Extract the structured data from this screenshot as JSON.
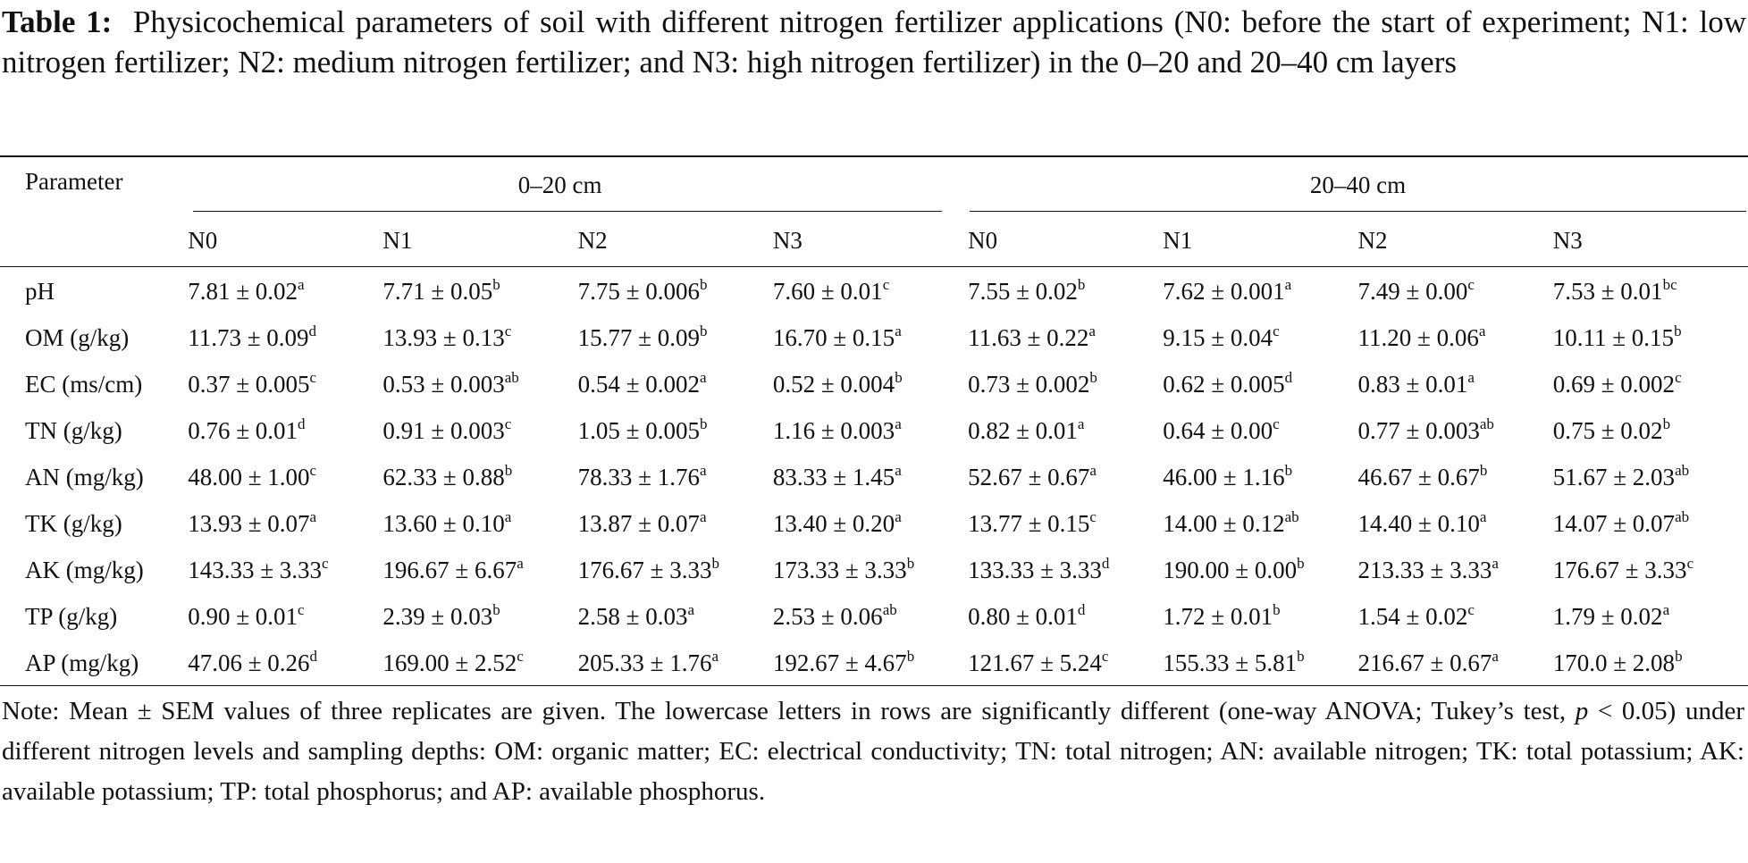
{
  "caption": {
    "label": "Table 1:",
    "text": "Physicochemical parameters of soil with different nitrogen fertilizer applications (N0: before the start of experiment; N1: low nitrogen fertilizer; N2: medium nitrogen fertilizer; and N3: high nitrogen fertilizer) in the 0–20 and 20–40 cm layers"
  },
  "table": {
    "param_header": "Parameter",
    "groups": [
      "0–20 cm",
      "20–40 cm"
    ],
    "subcolumns": [
      "N0",
      "N1",
      "N2",
      "N3",
      "N0",
      "N1",
      "N2",
      "N3"
    ],
    "rows": [
      {
        "param": "pH",
        "cells": [
          {
            "v": "7.81 ± 0.02",
            "s": "a"
          },
          {
            "v": "7.71 ± 0.05",
            "s": "b"
          },
          {
            "v": "7.75 ± 0.006",
            "s": "b"
          },
          {
            "v": "7.60 ± 0.01",
            "s": "c"
          },
          {
            "v": "7.55 ± 0.02",
            "s": "b"
          },
          {
            "v": "7.62 ± 0.001",
            "s": "a"
          },
          {
            "v": "7.49 ± 0.00",
            "s": "c"
          },
          {
            "v": "7.53 ± 0.01",
            "s": "bc"
          }
        ]
      },
      {
        "param": "OM (g/kg)",
        "cells": [
          {
            "v": "11.73 ± 0.09",
            "s": "d"
          },
          {
            "v": "13.93 ± 0.13",
            "s": "c"
          },
          {
            "v": "15.77 ± 0.09",
            "s": "b"
          },
          {
            "v": "16.70 ± 0.15",
            "s": "a"
          },
          {
            "v": "11.63 ± 0.22",
            "s": "a"
          },
          {
            "v": "9.15 ± 0.04",
            "s": "c"
          },
          {
            "v": "11.20 ± 0.06",
            "s": "a"
          },
          {
            "v": "10.11 ± 0.15",
            "s": "b"
          }
        ]
      },
      {
        "param": "EC (ms/cm)",
        "cells": [
          {
            "v": "0.37 ± 0.005",
            "s": "c"
          },
          {
            "v": "0.53 ± 0.003",
            "s": "ab"
          },
          {
            "v": "0.54 ± 0.002",
            "s": "a"
          },
          {
            "v": "0.52 ± 0.004",
            "s": "b"
          },
          {
            "v": "0.73 ± 0.002",
            "s": "b"
          },
          {
            "v": "0.62 ± 0.005",
            "s": "d"
          },
          {
            "v": "0.83 ± 0.01",
            "s": "a"
          },
          {
            "v": "0.69 ± 0.002",
            "s": "c"
          }
        ]
      },
      {
        "param": "TN (g/kg)",
        "cells": [
          {
            "v": "0.76 ± 0.01",
            "s": "d"
          },
          {
            "v": "0.91 ± 0.003",
            "s": "c"
          },
          {
            "v": "1.05 ± 0.005",
            "s": "b"
          },
          {
            "v": "1.16 ± 0.003",
            "s": "a"
          },
          {
            "v": "0.82 ± 0.01",
            "s": "a"
          },
          {
            "v": "0.64 ± 0.00",
            "s": "c"
          },
          {
            "v": "0.77 ± 0.003",
            "s": "ab"
          },
          {
            "v": "0.75 ± 0.02",
            "s": "b"
          }
        ]
      },
      {
        "param": "AN (mg/kg)",
        "cells": [
          {
            "v": "48.00 ± 1.00",
            "s": "c"
          },
          {
            "v": "62.33 ± 0.88",
            "s": "b"
          },
          {
            "v": "78.33 ± 1.76",
            "s": "a"
          },
          {
            "v": "83.33 ± 1.45",
            "s": "a"
          },
          {
            "v": "52.67 ± 0.67",
            "s": "a"
          },
          {
            "v": "46.00 ± 1.16",
            "s": "b"
          },
          {
            "v": "46.67 ± 0.67",
            "s": "b"
          },
          {
            "v": "51.67 ± 2.03",
            "s": "ab"
          }
        ]
      },
      {
        "param": "TK (g/kg)",
        "cells": [
          {
            "v": "13.93 ± 0.07",
            "s": "a"
          },
          {
            "v": "13.60 ± 0.10",
            "s": "a"
          },
          {
            "v": "13.87 ± 0.07",
            "s": "a"
          },
          {
            "v": "13.40 ± 0.20",
            "s": "a"
          },
          {
            "v": "13.77 ± 0.15",
            "s": "c"
          },
          {
            "v": "14.00 ± 0.12",
            "s": "ab"
          },
          {
            "v": "14.40 ± 0.10",
            "s": "a"
          },
          {
            "v": "14.07 ± 0.07",
            "s": "ab"
          }
        ]
      },
      {
        "param": "AK (mg/kg)",
        "cells": [
          {
            "v": "143.33 ± 3.33",
            "s": "c"
          },
          {
            "v": "196.67 ± 6.67",
            "s": "a"
          },
          {
            "v": "176.67 ± 3.33",
            "s": "b"
          },
          {
            "v": "173.33 ± 3.33",
            "s": "b"
          },
          {
            "v": "133.33 ± 3.33",
            "s": "d"
          },
          {
            "v": "190.00 ± 0.00",
            "s": "b"
          },
          {
            "v": "213.33 ± 3.33",
            "s": "a"
          },
          {
            "v": "176.67 ± 3.33",
            "s": "c"
          }
        ]
      },
      {
        "param": "TP (g/kg)",
        "cells": [
          {
            "v": "0.90 ± 0.01",
            "s": "c"
          },
          {
            "v": "2.39 ± 0.03",
            "s": "b"
          },
          {
            "v": "2.58 ± 0.03",
            "s": "a"
          },
          {
            "v": "2.53 ± 0.06",
            "s": "ab"
          },
          {
            "v": "0.80 ± 0.01",
            "s": "d"
          },
          {
            "v": "1.72 ± 0.01",
            "s": "b"
          },
          {
            "v": "1.54 ± 0.02",
            "s": "c"
          },
          {
            "v": "1.79 ± 0.02",
            "s": "a"
          }
        ]
      },
      {
        "param": "AP (mg/kg)",
        "cells": [
          {
            "v": "47.06 ± 0.26",
            "s": "d"
          },
          {
            "v": "169.00 ± 2.52",
            "s": "c"
          },
          {
            "v": "205.33 ± 1.76",
            "s": "a"
          },
          {
            "v": "192.67 ± 4.67",
            "s": "b"
          },
          {
            "v": "121.67 ± 5.24",
            "s": "c"
          },
          {
            "v": "155.33 ± 5.81",
            "s": "b"
          },
          {
            "v": "216.67 ± 0.67",
            "s": "a"
          },
          {
            "v": "170.0 ± 2.08",
            "s": "b"
          }
        ]
      }
    ]
  },
  "note": {
    "part1": "Note: Mean ± SEM values of three replicates are given. The lowercase letters in rows are significantly different (one-way ANOVA; Tukey’s test, ",
    "p_symbol": "p",
    "part2": " < 0.05) under different nitrogen levels and sampling depths: OM: organic matter; EC: electrical conductivity; TN: total nitrogen; AN: available nitrogen; TK: total potassium; AK: available potassium; TP: total phosphorus; and AP: available phosphorus."
  }
}
